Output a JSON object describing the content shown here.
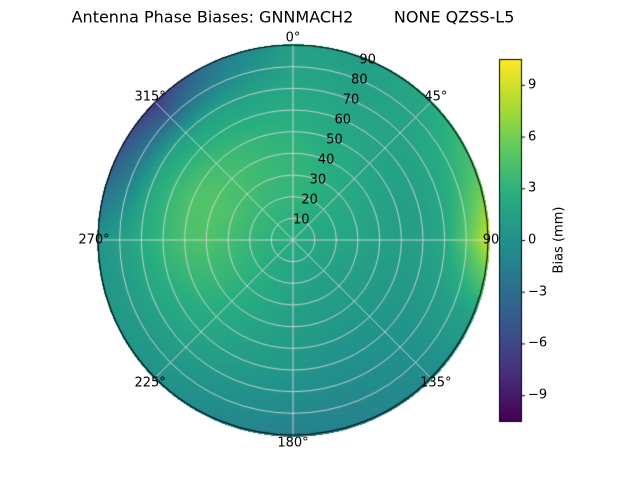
{
  "chart_data": {
    "type": "heatmap",
    "projection": "polar",
    "title": "Antenna Phase Biases: GNNMACH2        NONE QZSS-L5",
    "colormap": "viridis",
    "colormap_stops": [
      "#440154",
      "#472d7b",
      "#3b528b",
      "#2c728e",
      "#21918c",
      "#28ae80",
      "#5ec962",
      "#addc30",
      "#fde725"
    ],
    "grid": true,
    "colorbar": {
      "label": "Bias (mm)",
      "vmin": -10.5,
      "vmax": 10.5,
      "tick_values": [
        9,
        6,
        3,
        0,
        -3,
        -6,
        -9
      ],
      "tick_labels": [
        "9",
        "6",
        "3",
        "0",
        "−3",
        "−6",
        "−9"
      ]
    },
    "azimuth_tick_labels": [
      {
        "angle_deg": 0,
        "label": "0°"
      },
      {
        "angle_deg": 45,
        "label": "45°"
      },
      {
        "angle_deg": 90,
        "label": "90"
      },
      {
        "angle_deg": 135,
        "label": "135°"
      },
      {
        "angle_deg": 180,
        "label": "180°"
      },
      {
        "angle_deg": 225,
        "label": "225°"
      },
      {
        "angle_deg": 270,
        "label": "270°"
      },
      {
        "angle_deg": 315,
        "label": "315°"
      }
    ],
    "radial_tick_labels": [
      {
        "r": 10,
        "label": "10"
      },
      {
        "r": 20,
        "label": "20"
      },
      {
        "r": 30,
        "label": "30"
      },
      {
        "r": 40,
        "label": "40"
      },
      {
        "r": 50,
        "label": "50"
      },
      {
        "r": 60,
        "label": "60"
      },
      {
        "r": 70,
        "label": "70"
      },
      {
        "r": 80,
        "label": "80"
      },
      {
        "r": 90,
        "label": "90"
      }
    ],
    "radial_axis_angle_deg": 22.5,
    "azimuth_grid_deg": [
      0,
      22.5,
      45,
      67.5,
      90,
      112.5,
      135,
      157.5,
      180,
      202.5,
      225,
      247.5,
      270,
      292.5,
      315,
      337.5,
      360
    ],
    "radius_grid": [
      0,
      10,
      20,
      30,
      40,
      50,
      60,
      70,
      80,
      90
    ],
    "bias_mm": [
      [
        2.5,
        2.5,
        2.5,
        2.5,
        2.5,
        2.5,
        2.5,
        2.5,
        2.5,
        2.5,
        2.5,
        2.5,
        2.5,
        2.5,
        2.5,
        2.5,
        2.5
      ],
      [
        2.8,
        2.6,
        2.4,
        2.2,
        2.0,
        1.9,
        1.8,
        1.8,
        2.0,
        2.2,
        2.4,
        2.6,
        2.8,
        3.0,
        3.0,
        2.9,
        2.8
      ],
      [
        3.1,
        2.8,
        2.4,
        2.1,
        1.9,
        1.6,
        1.4,
        1.4,
        1.7,
        2.1,
        2.6,
        3.0,
        3.4,
        3.6,
        3.5,
        3.3,
        3.1
      ],
      [
        3.3,
        2.8,
        2.3,
        1.9,
        1.7,
        1.3,
        1.1,
        1.1,
        1.4,
        1.9,
        2.7,
        3.4,
        4.0,
        4.3,
        4.0,
        3.6,
        3.3
      ],
      [
        3.2,
        2.6,
        2.1,
        1.7,
        1.4,
        1.0,
        0.8,
        0.8,
        1.1,
        1.7,
        2.6,
        3.6,
        4.5,
        4.8,
        4.3,
        3.6,
        3.2
      ],
      [
        2.8,
        2.2,
        1.8,
        1.4,
        1.2,
        0.8,
        0.5,
        0.4,
        0.8,
        1.4,
        2.3,
        3.3,
        4.3,
        4.6,
        3.9,
        3.2,
        2.8
      ],
      [
        2.4,
        1.9,
        1.6,
        1.4,
        1.4,
        0.7,
        0.2,
        0.0,
        0.4,
        1.0,
        1.8,
        2.6,
        3.4,
        3.5,
        2.8,
        2.4,
        2.4
      ],
      [
        2.0,
        1.6,
        1.6,
        1.9,
        2.2,
        0.9,
        0.0,
        -0.4,
        -0.2,
        0.4,
        1.2,
        1.8,
        2.3,
        2.0,
        1.2,
        1.4,
        2.0
      ],
      [
        1.7,
        1.4,
        1.8,
        3.0,
        5.0,
        1.2,
        -0.2,
        -0.8,
        -0.8,
        -0.2,
        0.6,
        1.0,
        1.2,
        -1.5,
        -3.5,
        -0.5,
        1.7
      ],
      [
        1.4,
        1.2,
        2.2,
        4.5,
        8.8,
        1.5,
        -0.5,
        -1.2,
        -1.5,
        -0.8,
        0.2,
        0.6,
        0.3,
        -4.0,
        -6.8,
        -1.8,
        1.4
      ]
    ]
  }
}
